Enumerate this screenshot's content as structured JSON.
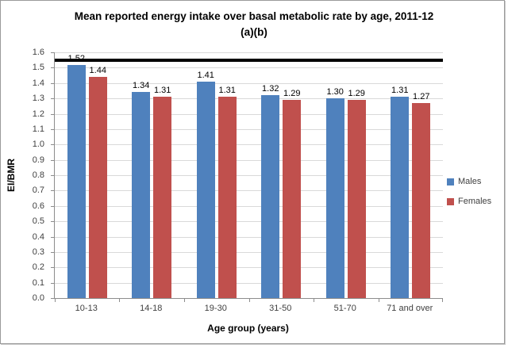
{
  "chart_data": {
    "type": "bar",
    "title": "Mean reported energy intake over basal metabolic rate by age, 2011-12 (a)(b)",
    "title_lines": [
      "Mean reported energy intake over basal metabolic rate by age, 2011-12",
      "(a)(b)"
    ],
    "categories": [
      "10-13",
      "14-18",
      "19-30",
      "31-50",
      "51-70",
      "71 and over"
    ],
    "series": [
      {
        "name": "Males",
        "color": "#4F81BD",
        "values": [
          1.52,
          1.34,
          1.41,
          1.32,
          1.3,
          1.31
        ]
      },
      {
        "name": "Females",
        "color": "#C0504D",
        "values": [
          1.44,
          1.31,
          1.31,
          1.29,
          1.29,
          1.27
        ]
      }
    ],
    "xlabel": "Age group (years)",
    "ylabel": "EI/BMR",
    "ylim": [
      0,
      1.6
    ],
    "ytick_step": 0.1,
    "ytick_format_decimals": 1,
    "data_label_decimals": 2,
    "reference_line": {
      "value": 1.55,
      "color": "#000000"
    },
    "legend_position": "right",
    "grid": true
  },
  "colors": {
    "males_blue": "#4F81BD",
    "females_red": "#C0504D",
    "reference_line": "#000000",
    "gridline": "#D9D9D9",
    "axis": "#8C8C8C",
    "frame_border": "#9A9A9A"
  }
}
